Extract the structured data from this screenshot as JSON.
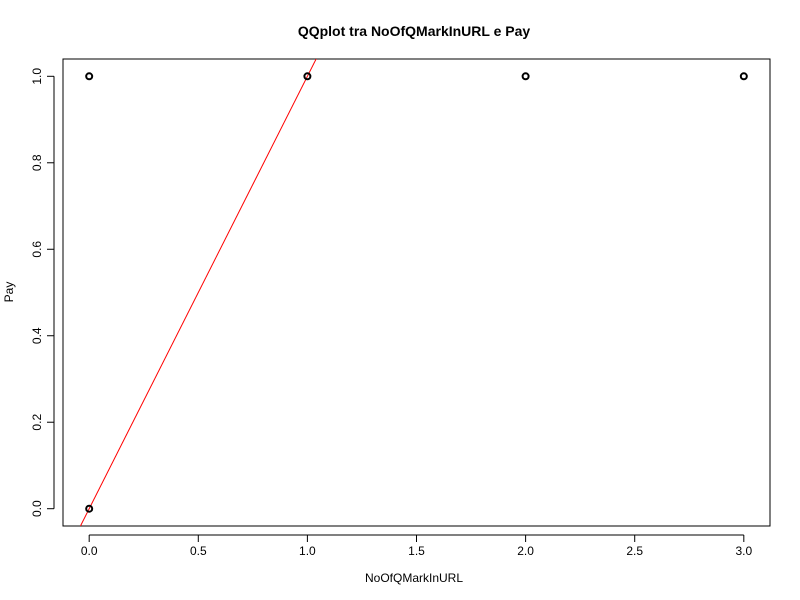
{
  "chart_data": {
    "type": "scatter",
    "title": "QQplot tra NoOfQMarkInURL e Pay",
    "xlabel": "NoOfQMarkInURL",
    "ylabel": "Pay",
    "xlim": [
      -0.12,
      3.12
    ],
    "ylim": [
      -0.04,
      1.04
    ],
    "x_ticks": [
      0.0,
      0.5,
      1.0,
      1.5,
      2.0,
      2.5,
      3.0
    ],
    "x_tick_labels": [
      "0.0",
      "0.5",
      "1.0",
      "1.5",
      "2.0",
      "2.5",
      "3.0"
    ],
    "y_ticks": [
      0.0,
      0.2,
      0.4,
      0.6,
      0.8,
      1.0
    ],
    "y_tick_labels": [
      "0.0",
      "0.2",
      "0.4",
      "0.6",
      "0.8",
      "1.0"
    ],
    "grid": false,
    "legend": "none",
    "points": [
      {
        "x": 0,
        "y": 0
      },
      {
        "x": 0,
        "y": 1
      },
      {
        "x": 1,
        "y": 1
      },
      {
        "x": 2,
        "y": 1
      },
      {
        "x": 3,
        "y": 1
      }
    ],
    "reference_line": {
      "intercept": 0,
      "slope": 1,
      "color": "#ff0000"
    },
    "point_color": "#000000"
  }
}
